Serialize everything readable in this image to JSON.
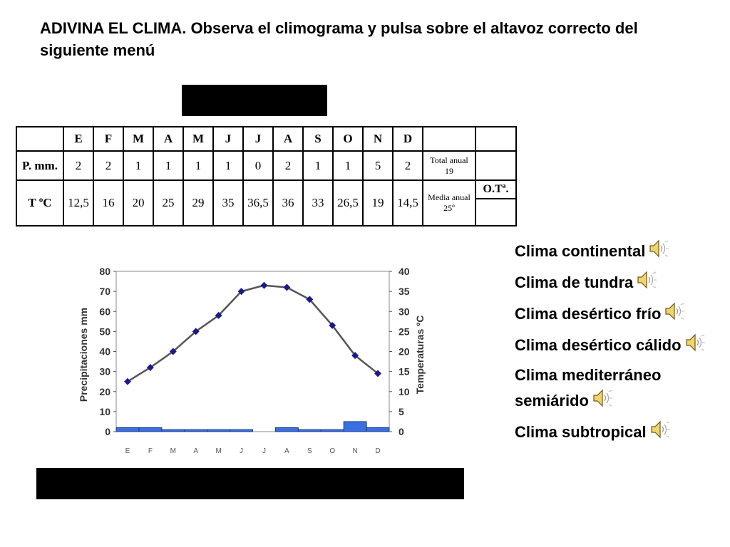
{
  "title": "ADIVINA EL CLIMA. Observa el climograma y pulsa sobre el altavoz correcto del siguiente menú",
  "table": {
    "months": [
      "E",
      "F",
      "M",
      "A",
      "M",
      "J",
      "J",
      "A",
      "S",
      "O",
      "N",
      "D"
    ],
    "precip_label": "P. mm.",
    "temp_label": "T ºC",
    "precip": [
      "2",
      "2",
      "1",
      "1",
      "1",
      "1",
      "0",
      "2",
      "1",
      "1",
      "5",
      "2"
    ],
    "temp": [
      "12,5",
      "16",
      "20",
      "25",
      "29",
      "35",
      "36,5",
      "36",
      "33",
      "26,5",
      "19",
      "14,5"
    ],
    "total_label": "Total anual",
    "total_value": "19",
    "mean_label": "Media anual",
    "mean_value": "25º",
    "ot_label": "O.Tª."
  },
  "chart_data": {
    "type": "bar",
    "categories": [
      "E",
      "F",
      "M",
      "A",
      "M",
      "J",
      "J",
      "A",
      "S",
      "O",
      "N",
      "D"
    ],
    "series": [
      {
        "type": "bar",
        "axis": "left",
        "color": "#3a6fe0",
        "values": [
          2,
          2,
          1,
          1,
          1,
          1,
          0,
          2,
          1,
          1,
          5,
          2
        ]
      },
      {
        "type": "line",
        "axis": "right",
        "color": "#555555",
        "marker_color": "#1a1a8c",
        "values": [
          12.5,
          16,
          20,
          25,
          29,
          35,
          36.5,
          36,
          33,
          26.5,
          19,
          14.5
        ]
      }
    ],
    "ylabel": "Precipitaciones mm",
    "y2label": "Temperaturas ºC",
    "ylim": [
      0,
      80
    ],
    "y2lim": [
      0,
      40
    ],
    "yticks": [
      "0",
      "10",
      "20",
      "30",
      "40",
      "50",
      "60",
      "70",
      "80"
    ],
    "y2ticks": [
      "0",
      "5",
      "10",
      "15",
      "20",
      "25",
      "30",
      "35",
      "40"
    ]
  },
  "options": [
    {
      "label": "Clima continental"
    },
    {
      "label": "Clima de tundra"
    },
    {
      "label": "Clima desértico frío"
    },
    {
      "label": "Clima desértico cálido"
    },
    {
      "label": "Clima mediterráneo semiárido"
    },
    {
      "label": "Clima subtropical"
    }
  ],
  "icons": {
    "speaker": "speaker-icon"
  }
}
